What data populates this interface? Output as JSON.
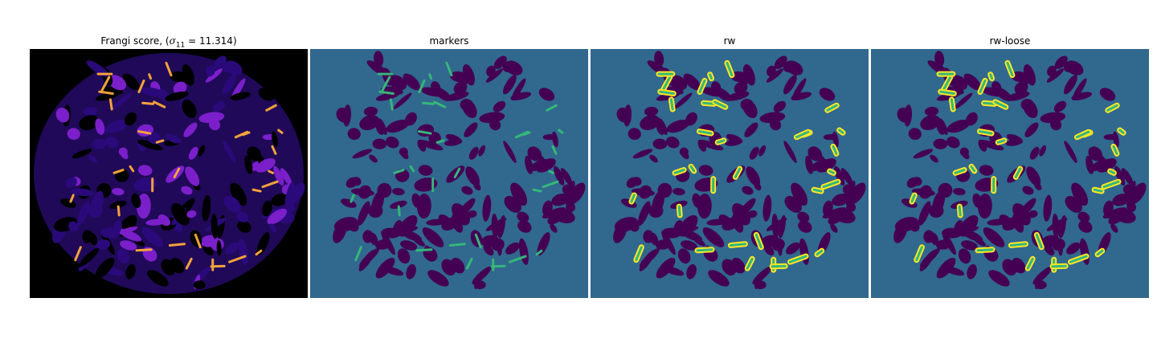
{
  "panels": [
    {
      "id": "frangi",
      "title_prefix": "Frangi score, (",
      "sigma_symbol": "σ",
      "sigma_subscript": "11",
      "sigma_value": " = 11.314)",
      "colormap": "magma/plasma",
      "colors": {
        "background": "#000000",
        "blob_low": "#2a0a7a",
        "blob_mid": "#7a1fc9",
        "vessel_high": "#f4a23b"
      }
    },
    {
      "id": "markers",
      "title": "markers",
      "colors": {
        "background": "#31688e",
        "foreground": "#440154",
        "marker": "#35b779"
      }
    },
    {
      "id": "rw",
      "title": "rw",
      "colors": {
        "background": "#31688e",
        "foreground": "#440154",
        "marker": "#35b779",
        "segmented": "#fde725"
      }
    },
    {
      "id": "rw-loose",
      "title": "rw-loose",
      "colors": {
        "background": "#31688e",
        "foreground": "#440154",
        "marker": "#35b779",
        "segmented": "#fde725"
      }
    }
  ]
}
